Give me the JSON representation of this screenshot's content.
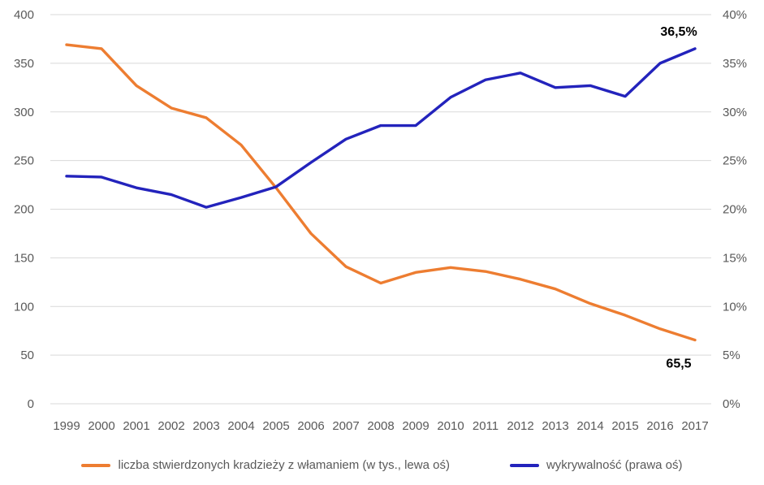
{
  "chart_data": {
    "type": "line",
    "x": [
      "1999",
      "2000",
      "2001",
      "2002",
      "2003",
      "2004",
      "2005",
      "2006",
      "2007",
      "2008",
      "2009",
      "2010",
      "2011",
      "2012",
      "2013",
      "2014",
      "2015",
      "2016",
      "2017"
    ],
    "series": [
      {
        "name": "liczba stwierdzonych kradzieży z włamaniem (w tys., lewa oś)",
        "axis": "left",
        "color": "#ED7D31",
        "values": [
          369,
          365,
          327,
          304,
          294,
          266,
          222,
          175,
          141,
          124,
          135,
          140,
          136,
          128,
          118,
          103,
          91,
          77,
          65.5
        ]
      },
      {
        "name": "wykrywalność (prawa oś)",
        "axis": "right",
        "color": "#2323BC",
        "values": [
          23.4,
          23.3,
          22.2,
          21.5,
          20.2,
          21.2,
          22.3,
          24.8,
          27.2,
          28.6,
          28.6,
          31.5,
          33.3,
          34.0,
          32.5,
          32.7,
          31.6,
          35.0,
          36.5
        ]
      }
    ],
    "left_axis": {
      "min": 0,
      "max": 400,
      "step": 50,
      "labels": [
        "0",
        "50",
        "100",
        "150",
        "200",
        "250",
        "300",
        "350",
        "400"
      ]
    },
    "right_axis": {
      "min": 0,
      "max": 40,
      "step": 5,
      "labels": [
        "0%",
        "5%",
        "10%",
        "15%",
        "20%",
        "25%",
        "30%",
        "35%",
        "40%"
      ]
    },
    "annotations": [
      {
        "text": "36,5%",
        "series": 1,
        "position": "above-end"
      },
      {
        "text": "65,5",
        "series": 0,
        "position": "below-end"
      }
    ],
    "grid": true,
    "legend_position": "bottom",
    "title": "",
    "xlabel": "",
    "ylabel": ""
  }
}
